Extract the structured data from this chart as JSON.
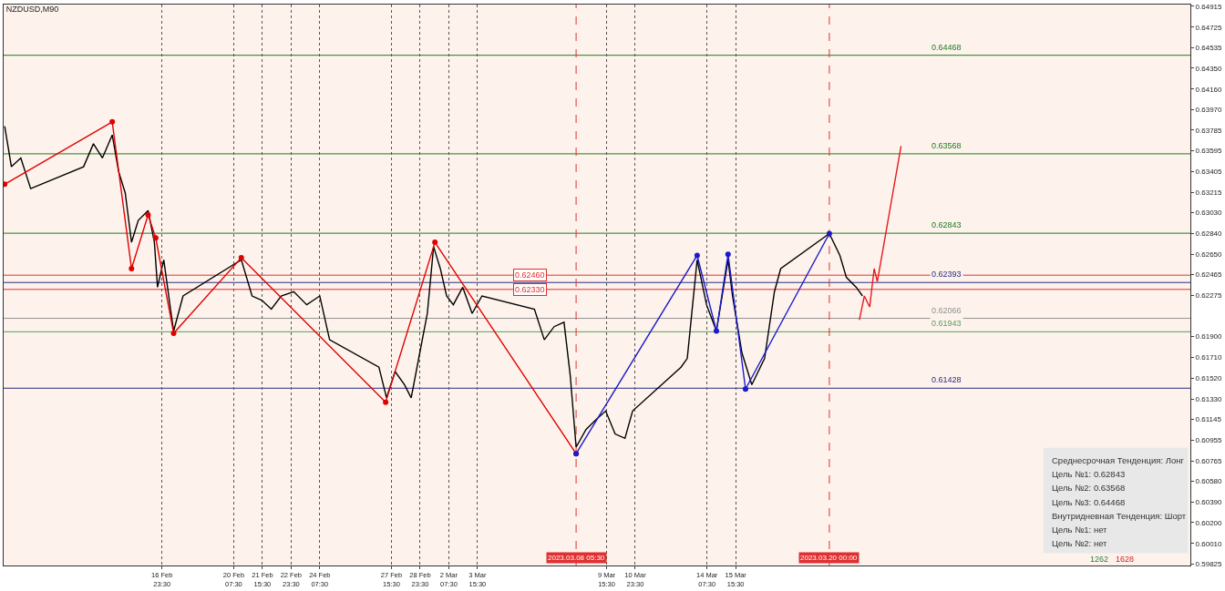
{
  "chart_data": {
    "type": "line",
    "title": "NZDUSD,M90",
    "xlim": [
      "2023-02-09T14:51",
      "2023-04-05T18:45"
    ],
    "ylim": [
      0.59809,
      0.64931
    ],
    "xticks": [
      {
        "value": "2023-02-16T23:30",
        "label": "16 Feb 23:30"
      },
      {
        "value": "2023-02-20T07:30",
        "label": "20 Feb 07:30"
      },
      {
        "value": "2023-02-21T15:30",
        "label": "21 Feb 15:30"
      },
      {
        "value": "2023-02-22T23:30",
        "label": "22 Feb 23:30"
      },
      {
        "value": "2023-02-24T07:30",
        "label": "24 Feb 07:30"
      },
      {
        "value": "2023-02-27T15:30",
        "label": "27 Feb 15:30"
      },
      {
        "value": "2023-02-28T23:30",
        "label": "28 Feb 23:30"
      },
      {
        "value": "2023-03-02T07:30",
        "label": "2 Mar 07:30"
      },
      {
        "value": "2023-03-03T15:30",
        "label": "3 Mar 15:30"
      },
      {
        "value": "2023-03-09T15:30",
        "label": "9 Mar 15:30"
      },
      {
        "value": "2023-03-10T23:30",
        "label": "10 Mar 23:30"
      },
      {
        "value": "2023-03-14T07:30",
        "label": "14 Mar 07:30"
      },
      {
        "value": "2023-03-15T15:30",
        "label": "15 Mar 15:30"
      }
    ],
    "yticks": [
      0.64915,
      0.64725,
      0.64535,
      {
        "value": 0.6435,
        "label": "0.64350"
      },
      {
        "value": 0.6416,
        "label": "0.64160"
      },
      {
        "value": 0.6397,
        "label": "0.63970"
      },
      0.63785,
      0.63595,
      0.63405,
      0.63215,
      {
        "value": 0.6303,
        "label": "0.63030"
      },
      {
        "value": 0.6284,
        "label": "0.62840"
      },
      {
        "value": 0.6265,
        "label": "0.62650"
      },
      0.62465,
      0.62275,
      {
        "value": 0.619,
        "label": "0.61900"
      },
      {
        "value": 0.6171,
        "label": "0.61710"
      },
      {
        "value": 0.6152,
        "label": "0.61520"
      },
      {
        "value": 0.6133,
        "label": "0.61330"
      },
      0.61145,
      0.60955,
      0.60765,
      {
        "value": 0.6058,
        "label": "0.60580"
      },
      {
        "value": 0.6039,
        "label": "0.60390"
      },
      {
        "value": 0.602,
        "label": "0.60200"
      },
      {
        "value": 0.6001,
        "label": "0.60010"
      },
      0.59825
    ],
    "grid": "x",
    "series": [
      {
        "color": "#000000",
        "marker": "none",
        "x": [
          "2023-02-09T16:00",
          "2023-02-09T23:30",
          "2023-02-10T10:00",
          "2023-02-10T21:00",
          "2023-02-13T08:00",
          "2023-02-13T19:00",
          "2023-02-14T05:00",
          "2023-02-14T16:00",
          "2023-02-14T23:00",
          "2023-02-15T06:30",
          "2023-02-15T13:30",
          "2023-02-15T21:00",
          "2023-02-16T08:00",
          "2023-02-16T15:00",
          "2023-02-16T18:30",
          "2023-02-17T01:30",
          "2023-02-17T09:00",
          "2023-02-17T12:30",
          "2023-02-17T23:00",
          "2023-02-20T16:00",
          "2023-02-21T04:00",
          "2023-02-21T15:00",
          "2023-02-22T01:30",
          "2023-02-22T12:30",
          "2023-02-23T02:30",
          "2023-02-23T17:00",
          "2023-02-24T07:30",
          "2023-02-24T18:30",
          "2023-02-27T01:30",
          "2023-02-27T10:00",
          "2023-02-27T19:30",
          "2023-02-28T06:00",
          "2023-02-28T13:30",
          "2023-03-01T00:00",
          "2023-03-01T07:30",
          "2023-03-01T14:30",
          "2023-03-01T22:00",
          "2023-03-02T05:00",
          "2023-03-02T12:30",
          "2023-03-02T23:00",
          "2023-03-03T09:30",
          "2023-03-03T20:30",
          "2023-03-06T07:00",
          "2023-03-06T18:00",
          "2023-03-07T05:00",
          "2023-03-07T16:00",
          "2023-03-07T23:00",
          "2023-03-08T05:30",
          "2023-03-08T16:30",
          "2023-03-09T03:30",
          "2023-03-09T14:30",
          "2023-03-10T01:00",
          "2023-03-10T12:00",
          "2023-03-10T20:30",
          "2023-03-13T02:30",
          "2023-03-13T09:30",
          "2023-03-13T20:30",
          "2023-03-14T07:00",
          "2023-03-14T18:00",
          "2023-03-15T07:00",
          "2023-03-15T12:00",
          "2023-03-15T22:30",
          "2023-03-16T09:30",
          "2023-03-16T23:45",
          "2023-03-17T10:45",
          "2023-03-17T17:45",
          "2023-03-20T00:00",
          "2023-03-20T11:45",
          "2023-03-20T19:00",
          "2023-03-21T06:00",
          "2023-03-21T13:00"
        ],
        "values": [
          0.6382,
          0.6345,
          0.6353,
          0.6325,
          0.6345,
          0.6366,
          0.6353,
          0.6374,
          0.6341,
          0.6321,
          0.6276,
          0.6296,
          0.6305,
          0.6276,
          0.6235,
          0.626,
          0.6215,
          0.6195,
          0.6227,
          0.626,
          0.6227,
          0.6223,
          0.6215,
          0.6227,
          0.6231,
          0.6219,
          0.6227,
          0.6187,
          0.6162,
          0.6134,
          0.6158,
          0.6146,
          0.6134,
          0.6179,
          0.6211,
          0.6272,
          0.6252,
          0.6227,
          0.6219,
          0.6235,
          0.6211,
          0.6227,
          0.6215,
          0.6187,
          0.6199,
          0.6203,
          0.6154,
          0.6089,
          0.6105,
          0.6114,
          0.6122,
          0.6101,
          0.6097,
          0.6122,
          0.6162,
          0.617,
          0.626,
          0.6219,
          0.6195,
          0.626,
          0.6227,
          0.6175,
          0.6146,
          0.617,
          0.6231,
          0.6252,
          0.6284,
          0.6264,
          0.6244,
          0.6235,
          0.6227
        ]
      },
      {
        "color": "#e00000",
        "marker": "circle",
        "x": [
          "2023-02-09T16:00",
          "2023-02-14T16:00",
          "2023-02-15T13:30",
          "2023-02-16T08:00",
          "2023-02-16T16:30",
          "2023-02-17T12:30",
          "2023-02-20T16:00",
          "2023-02-27T09:00",
          "2023-03-01T16:00",
          "2023-03-08T05:30"
        ],
        "values": [
          0.6329,
          0.6386,
          0.6252,
          0.6301,
          0.628,
          0.6193,
          0.6262,
          0.613,
          0.6276,
          0.6083
        ]
      },
      {
        "color": "#1a1acc",
        "marker": "circle",
        "x": [
          "2023-03-08T05:30",
          "2023-03-13T20:30",
          "2023-03-14T18:00",
          "2023-03-15T07:00",
          "2023-03-16T02:30",
          "2023-03-20T00:00"
        ],
        "values": [
          0.6083,
          0.6264,
          0.6195,
          0.6265,
          0.6142,
          0.6284
        ]
      },
      {
        "color": "#e8181e",
        "marker": "none",
        "x": [
          "2023-03-21T09:30",
          "2023-03-21T15:00",
          "2023-03-21T21:00",
          "2023-03-22T02:00",
          "2023-03-22T05:30",
          "2023-03-23T08:00"
        ],
        "values": [
          0.6205,
          0.6227,
          0.6217,
          0.6252,
          0.624,
          0.6364
        ]
      }
    ],
    "ref_lines": [
      {
        "axis": "y",
        "value": 0.64468,
        "label": "0.64468",
        "color": "#1e7b1e"
      },
      {
        "axis": "y",
        "value": 0.63568,
        "label": "0.63568",
        "color": "#1e7b1e"
      },
      {
        "axis": "y",
        "value": 0.62843,
        "label": "0.62843",
        "color": "#1e7b1e"
      },
      {
        "axis": "y",
        "value": 0.62393,
        "label": "0.62393",
        "color": "#2b2b80"
      },
      {
        "axis": "y",
        "value": 0.61943,
        "label": "0.61943",
        "color": "#5a9e5a"
      },
      {
        "axis": "y",
        "value": 0.61428,
        "label": "0.61428",
        "color": "#2b2b80"
      },
      {
        "axis": "y",
        "value": 0.6246,
        "label": "0.62460",
        "color": "#e03030"
      },
      {
        "axis": "y",
        "value": 0.6233,
        "label": "0.62330",
        "color": "#e03030"
      },
      {
        "axis": "y",
        "value": 0.62066,
        "label": "0.62066",
        "color": "#909090"
      },
      {
        "axis": "x",
        "value": "2023-03-08T05:30",
        "label": "2023.03.08 05:30",
        "color": "#e03030",
        "line_style": "dashed"
      },
      {
        "axis": "x",
        "value": "2023-03-20T00:00",
        "label": "2023.03.20 00:00",
        "color": "#e03030",
        "line_style": "dashed"
      }
    ],
    "annotations": [
      "Среднесрочная Тенденция: Лонг",
      "Цель №1: 0.62843",
      "Цель №2: 0.63568",
      "Цель №3: 0.64468",
      "Внутридневная Тенденция: Шорт",
      "Цель №1: нет",
      "Цель №2: нет",
      "1262",
      "1628"
    ]
  }
}
